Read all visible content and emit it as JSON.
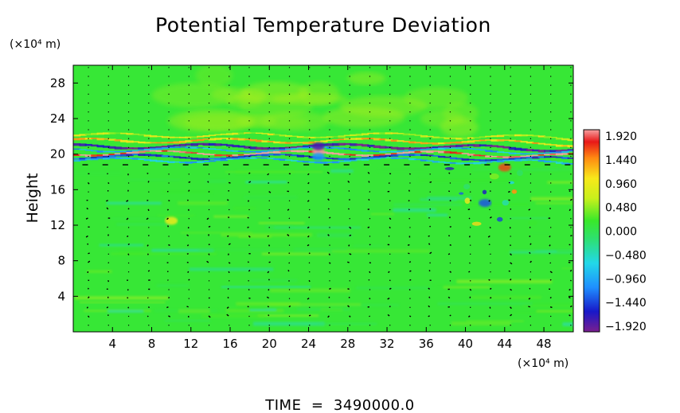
{
  "chart_data": {
    "type": "heatmap",
    "title": "Potential Temperature Deviation",
    "ylabel": "Height",
    "y_unit": "(×10⁴ m)",
    "x_unit": "(×10⁴ m)",
    "xlim": [
      0,
      51
    ],
    "ylim": [
      0,
      30
    ],
    "x_ticks": [
      "4",
      "8",
      "12",
      "16",
      "20",
      "24",
      "28",
      "32",
      "36",
      "40",
      "44",
      "48"
    ],
    "y_ticks": [
      "4",
      "8",
      "12",
      "16",
      "20",
      "24",
      "28"
    ],
    "colorbar": {
      "labels": [
        "1.920",
        "1.440",
        "0.960",
        "0.480",
        "0.000",
        "−0.480",
        "−0.960",
        "−1.440",
        "−1.920"
      ],
      "min": -1.92,
      "max": 1.92
    },
    "background_value": 0.25,
    "features": [
      {
        "x": 25,
        "y": 20.3,
        "value": 1.9
      },
      {
        "x": 25,
        "y": 20.9,
        "value": -1.7
      },
      {
        "x": 25,
        "y": 19.7,
        "value": -0.9
      },
      {
        "x": 42,
        "y": 14.5,
        "value": -1.2
      },
      {
        "x": 44,
        "y": 18.5,
        "value": 1.6
      },
      {
        "x": 10,
        "y": 12.5,
        "value": 0.9
      }
    ],
    "footer": "TIME  =  3490000.0"
  }
}
